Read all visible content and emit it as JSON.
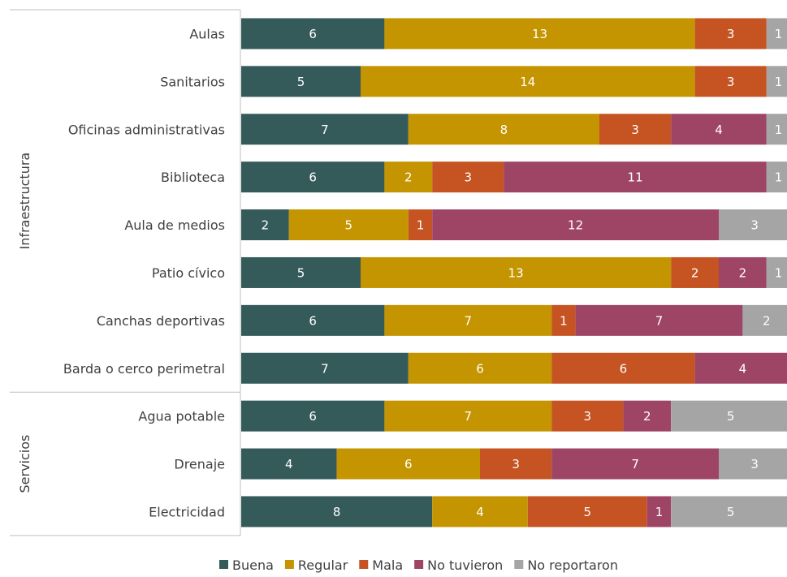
{
  "chart_data": {
    "type": "bar",
    "orientation": "horizontal",
    "stacked": true,
    "title": "",
    "xlabel": "",
    "ylabel": "",
    "legend_position": "bottom",
    "grid": false,
    "groups": [
      {
        "name": "Infraestructura",
        "categories": [
          "Aulas",
          "Sanitarios",
          "Oficinas administrativas",
          "Biblioteca",
          "Aula de medios",
          "Patio cívico",
          "Canchas deportivas",
          "Barda o cerco perimetral"
        ]
      },
      {
        "name": "Servicios",
        "categories": [
          "Agua potable",
          "Drenaje",
          "Electricidad"
        ]
      }
    ],
    "categories": [
      "Aulas",
      "Sanitarios",
      "Oficinas administrativas",
      "Biblioteca",
      "Aula de medios",
      "Patio cívico",
      "Canchas deportivas",
      "Barda o cerco perimetral",
      "Agua potable",
      "Drenaje",
      "Electricidad"
    ],
    "series": [
      {
        "name": "Buena",
        "color": "#355a5a",
        "values": [
          6,
          5,
          7,
          6,
          2,
          5,
          6,
          7,
          6,
          4,
          8
        ]
      },
      {
        "name": "Regular",
        "color": "#c49500",
        "values": [
          13,
          14,
          8,
          2,
          5,
          13,
          7,
          6,
          7,
          6,
          4
        ]
      },
      {
        "name": "Mala",
        "color": "#c55422",
        "values": [
          3,
          3,
          3,
          3,
          1,
          2,
          1,
          6,
          3,
          3,
          5
        ]
      },
      {
        "name": "No tuvieron",
        "color": "#9e4566",
        "values": [
          0,
          0,
          4,
          11,
          12,
          2,
          7,
          4,
          2,
          7,
          1
        ]
      },
      {
        "name": "No reportaron",
        "color": "#a5a5a5",
        "values": [
          1,
          1,
          1,
          1,
          3,
          1,
          2,
          0,
          5,
          3,
          5
        ]
      }
    ]
  }
}
